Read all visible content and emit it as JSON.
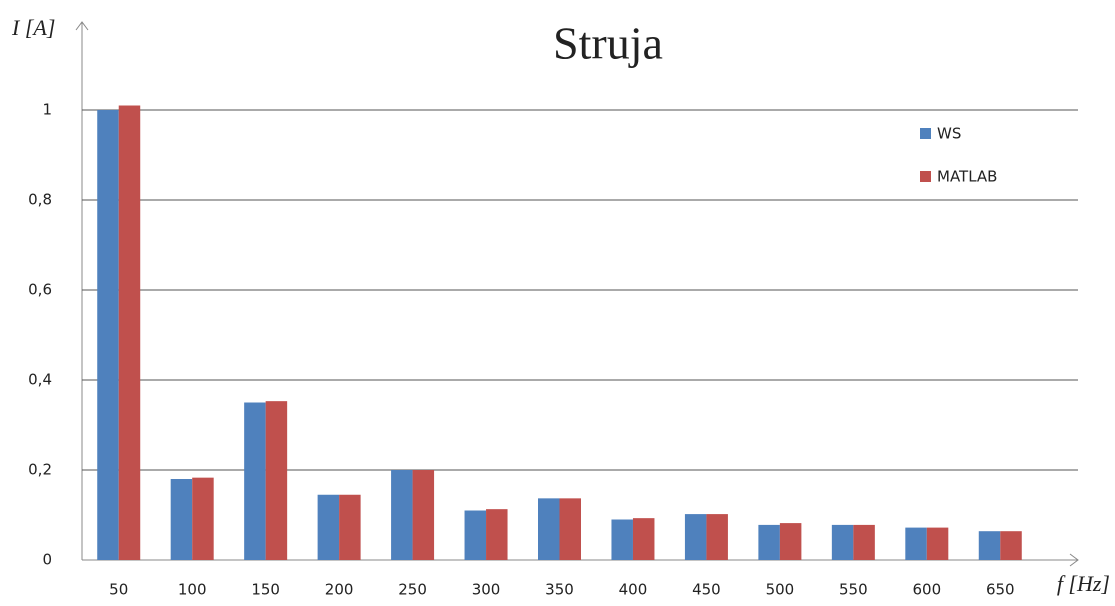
{
  "chart_data": {
    "type": "bar",
    "title": "Struja",
    "y_label": "I [A]",
    "x_label": "f [Hz]",
    "categories": [
      "50",
      "100",
      "150",
      "200",
      "250",
      "300",
      "350",
      "400",
      "450",
      "500",
      "550",
      "600",
      "650"
    ],
    "series": [
      {
        "name": "WS",
        "color": "#4f81bd",
        "values": [
          1.0,
          0.18,
          0.35,
          0.145,
          0.2,
          0.11,
          0.137,
          0.09,
          0.102,
          0.078,
          0.078,
          0.072,
          0.064
        ]
      },
      {
        "name": "MATLAB",
        "color": "#c0504d",
        "values": [
          1.01,
          0.183,
          0.353,
          0.145,
          0.2,
          0.113,
          0.137,
          0.093,
          0.102,
          0.082,
          0.078,
          0.072,
          0.064
        ]
      }
    ],
    "ylim": [
      0,
      1.2
    ],
    "yticks": [
      0,
      {
        "value": 0.2,
        "label": "0,2"
      },
      {
        "value": 0.4,
        "label": "0,4"
      },
      {
        "value": 0.6,
        "label": "0,6"
      },
      {
        "value": 0.8,
        "label": "0,8"
      },
      1
    ],
    "grid": true,
    "legend": "upper right"
  }
}
